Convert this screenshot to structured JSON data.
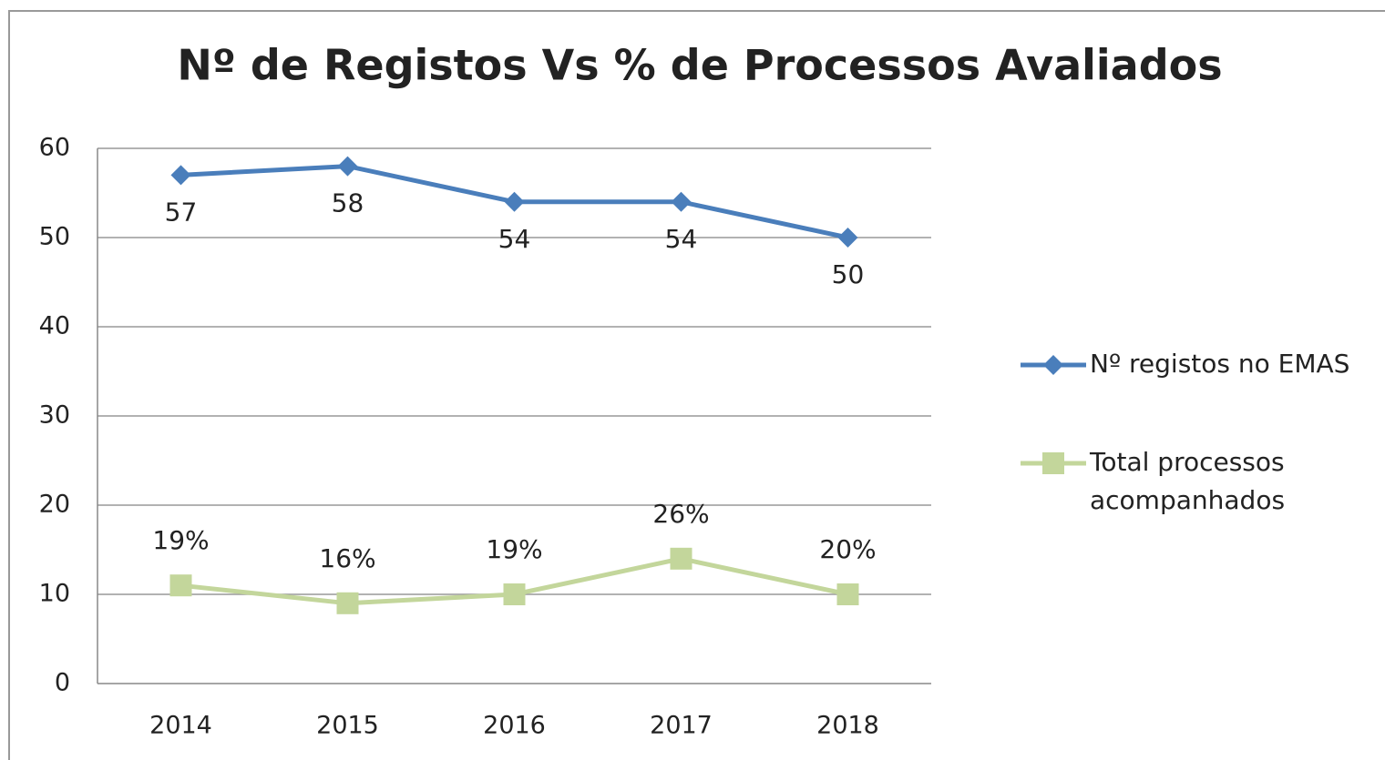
{
  "chart_data": {
    "type": "line",
    "title": "Nº de Registos Vs % de Processos Avaliados",
    "categories": [
      "2014",
      "2015",
      "2016",
      "2017",
      "2018"
    ],
    "series": [
      {
        "name": "Nº registos no EMAS",
        "color": "#4a7ebb",
        "marker": "diamond",
        "values": [
          57,
          58,
          54,
          54,
          50
        ]
      },
      {
        "name": "Total processos acompanhados",
        "color": "#c3d69b",
        "marker": "square",
        "values": [
          11,
          9,
          10,
          14,
          10
        ],
        "annotations": [
          "19%",
          "16%",
          "19%",
          "26%",
          "20%"
        ]
      }
    ],
    "ylim": [
      0,
      60
    ],
    "yticks": [
      0,
      10,
      20,
      30,
      40,
      50,
      60
    ],
    "grid": true,
    "legend": "right"
  }
}
